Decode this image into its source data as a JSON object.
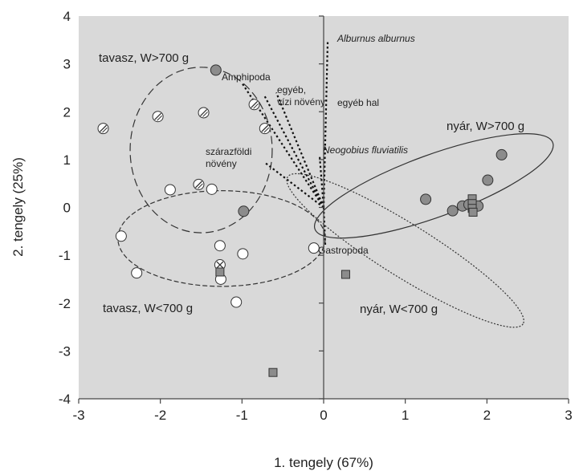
{
  "chart_data": {
    "type": "scatter",
    "xlabel": "1. tengely (67%)",
    "ylabel": "2. tengely (25%)",
    "xlim": [
      -3,
      3
    ],
    "ylim": [
      -4,
      4
    ],
    "xticks": [
      "-3",
      "-2",
      "-1",
      "0",
      "1",
      "2",
      "3"
    ],
    "yticks": [
      "-4",
      "-3",
      "-2",
      "-1",
      "0",
      "1",
      "2",
      "3",
      "4"
    ],
    "grid": false,
    "colors": {
      "plot_bg": "#d9d9d9",
      "marker_gray": "#8c8c8c",
      "marker_white": "#ffffff",
      "line": "#333333"
    },
    "series": [
      {
        "group": "spring-large",
        "marker": "circle-hatched",
        "points": [
          [
            -2.7,
            1.65
          ],
          [
            -2.03,
            1.9
          ],
          [
            -1.47,
            1.98
          ],
          [
            -0.85,
            2.15
          ],
          [
            -0.72,
            1.65
          ],
          [
            -1.53,
            0.48
          ]
        ]
      },
      {
        "group": "spring-small",
        "marker": "circle-open",
        "points": [
          [
            -1.88,
            0.37
          ],
          [
            -1.37,
            0.38
          ],
          [
            -2.48,
            -0.6
          ],
          [
            -2.29,
            -1.37
          ],
          [
            -1.27,
            -0.8
          ],
          [
            -0.99,
            -0.97
          ],
          [
            -1.26,
            -1.5
          ],
          [
            -1.07,
            -1.98
          ],
          [
            -0.12,
            -0.85
          ]
        ]
      },
      {
        "group": "spring-mixed",
        "marker": "circle-x",
        "points": [
          [
            -1.27,
            -1.2
          ]
        ]
      },
      {
        "group": "summer-large",
        "marker": "circle-filled",
        "points": [
          [
            -1.32,
            2.87
          ],
          [
            -0.98,
            -0.08
          ],
          [
            2.18,
            1.1
          ],
          [
            2.01,
            0.57
          ],
          [
            1.25,
            0.17
          ],
          [
            1.58,
            -0.07
          ],
          [
            1.7,
            0.03
          ],
          [
            1.78,
            0.06
          ],
          [
            1.89,
            0.03
          ]
        ]
      },
      {
        "group": "summer-small",
        "marker": "square-filled",
        "points": [
          [
            1.82,
            0.18
          ],
          [
            1.82,
            0.08
          ],
          [
            1.82,
            -0.02
          ],
          [
            1.83,
            -0.1
          ],
          [
            0.27,
            -1.4
          ],
          [
            -1.27,
            -1.35
          ],
          [
            -0.62,
            -3.45
          ]
        ]
      }
    ],
    "groups": [
      {
        "label": "tavasz, W>700 g",
        "center": [
          -1.5,
          1.2
        ],
        "rx": 0.87,
        "ry": 1.73,
        "angle": 0,
        "style": "long-dash"
      },
      {
        "label": "tavasz, W<700 g",
        "center": [
          -1.25,
          -0.65
        ],
        "rx": 1.27,
        "ry": 1.0,
        "angle": 0,
        "style": "short-dash"
      },
      {
        "label": "nyár, W>700 g",
        "center": [
          1.35,
          0.45
        ],
        "rx": 1.55,
        "ry": 0.65,
        "angle": -20,
        "style": "solid"
      },
      {
        "label": "nyár, W<700 g",
        "center": [
          1.0,
          -0.9
        ],
        "rx": 1.7,
        "ry": 0.55,
        "angle": 32,
        "style": "dotted"
      }
    ],
    "vectors": [
      {
        "label": "Alburnus alburnus",
        "italic": true,
        "end": [
          0.05,
          3.5
        ]
      },
      {
        "label": "Amphipoda",
        "italic": false,
        "end": [
          -1.0,
          2.6
        ]
      },
      {
        "label": "egyéb,\nvízi növény",
        "italic": false,
        "end": [
          -0.73,
          2.35
        ]
      },
      {
        "label": "egyéb hal",
        "italic": false,
        "end": [
          -0.58,
          2.4
        ]
      },
      {
        "label": "Neogobius fluviatilis",
        "italic": true,
        "end": [
          -0.05,
          1.1
        ]
      },
      {
        "label": "szárazföldi\nnövény",
        "italic": false,
        "end": [
          -0.73,
          0.95
        ]
      },
      {
        "label": "Gastropoda",
        "italic": false,
        "end": [
          0.02,
          -0.78
        ]
      }
    ]
  }
}
